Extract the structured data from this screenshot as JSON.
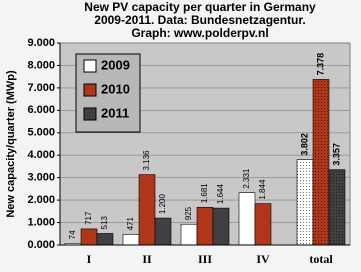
{
  "chart_data": {
    "type": "bar",
    "title": [
      "New PV capacity per quarter in Germany",
      "2009-2011. Data: Bundesnetzagentur.",
      "Graph: www.polderpv.nl"
    ],
    "ylabel": "New capacity/quarter (MWp)",
    "categories": [
      "I",
      "II",
      "III",
      "IV",
      "total"
    ],
    "series": [
      {
        "name": "2009",
        "color": "#ffffff",
        "values": [
          74,
          471,
          925,
          2331,
          3802
        ],
        "value_labels": [
          "74",
          "471",
          "925",
          "2.331",
          "3.802"
        ]
      },
      {
        "name": "2010",
        "color": "#b0361a",
        "values": [
          717,
          3136,
          1681,
          1844,
          7378
        ],
        "value_labels": [
          "717",
          "3.136",
          "1.681",
          "1.844",
          "7.378"
        ]
      },
      {
        "name": "2011",
        "color": "#404040",
        "values": [
          513,
          1200,
          1644,
          null,
          3357
        ],
        "value_labels": [
          "513",
          "1.200",
          "1.644",
          null,
          "3.357"
        ]
      }
    ],
    "ylim": [
      0,
      9000
    ],
    "yticks": [
      {
        "value": 0,
        "label": "0.000"
      },
      {
        "value": 1000,
        "label": "1.000"
      },
      {
        "value": 2000,
        "label": "2.000"
      },
      {
        "value": 3000,
        "label": "3.000"
      },
      {
        "value": 4000,
        "label": "4.000"
      },
      {
        "value": 5000,
        "label": "5.000"
      },
      {
        "value": 6000,
        "label": "6.000"
      },
      {
        "value": 7000,
        "label": "7.000"
      },
      {
        "value": 8000,
        "label": "8.000"
      },
      {
        "value": 9000,
        "label": "9.000"
      }
    ],
    "grid": true
  }
}
